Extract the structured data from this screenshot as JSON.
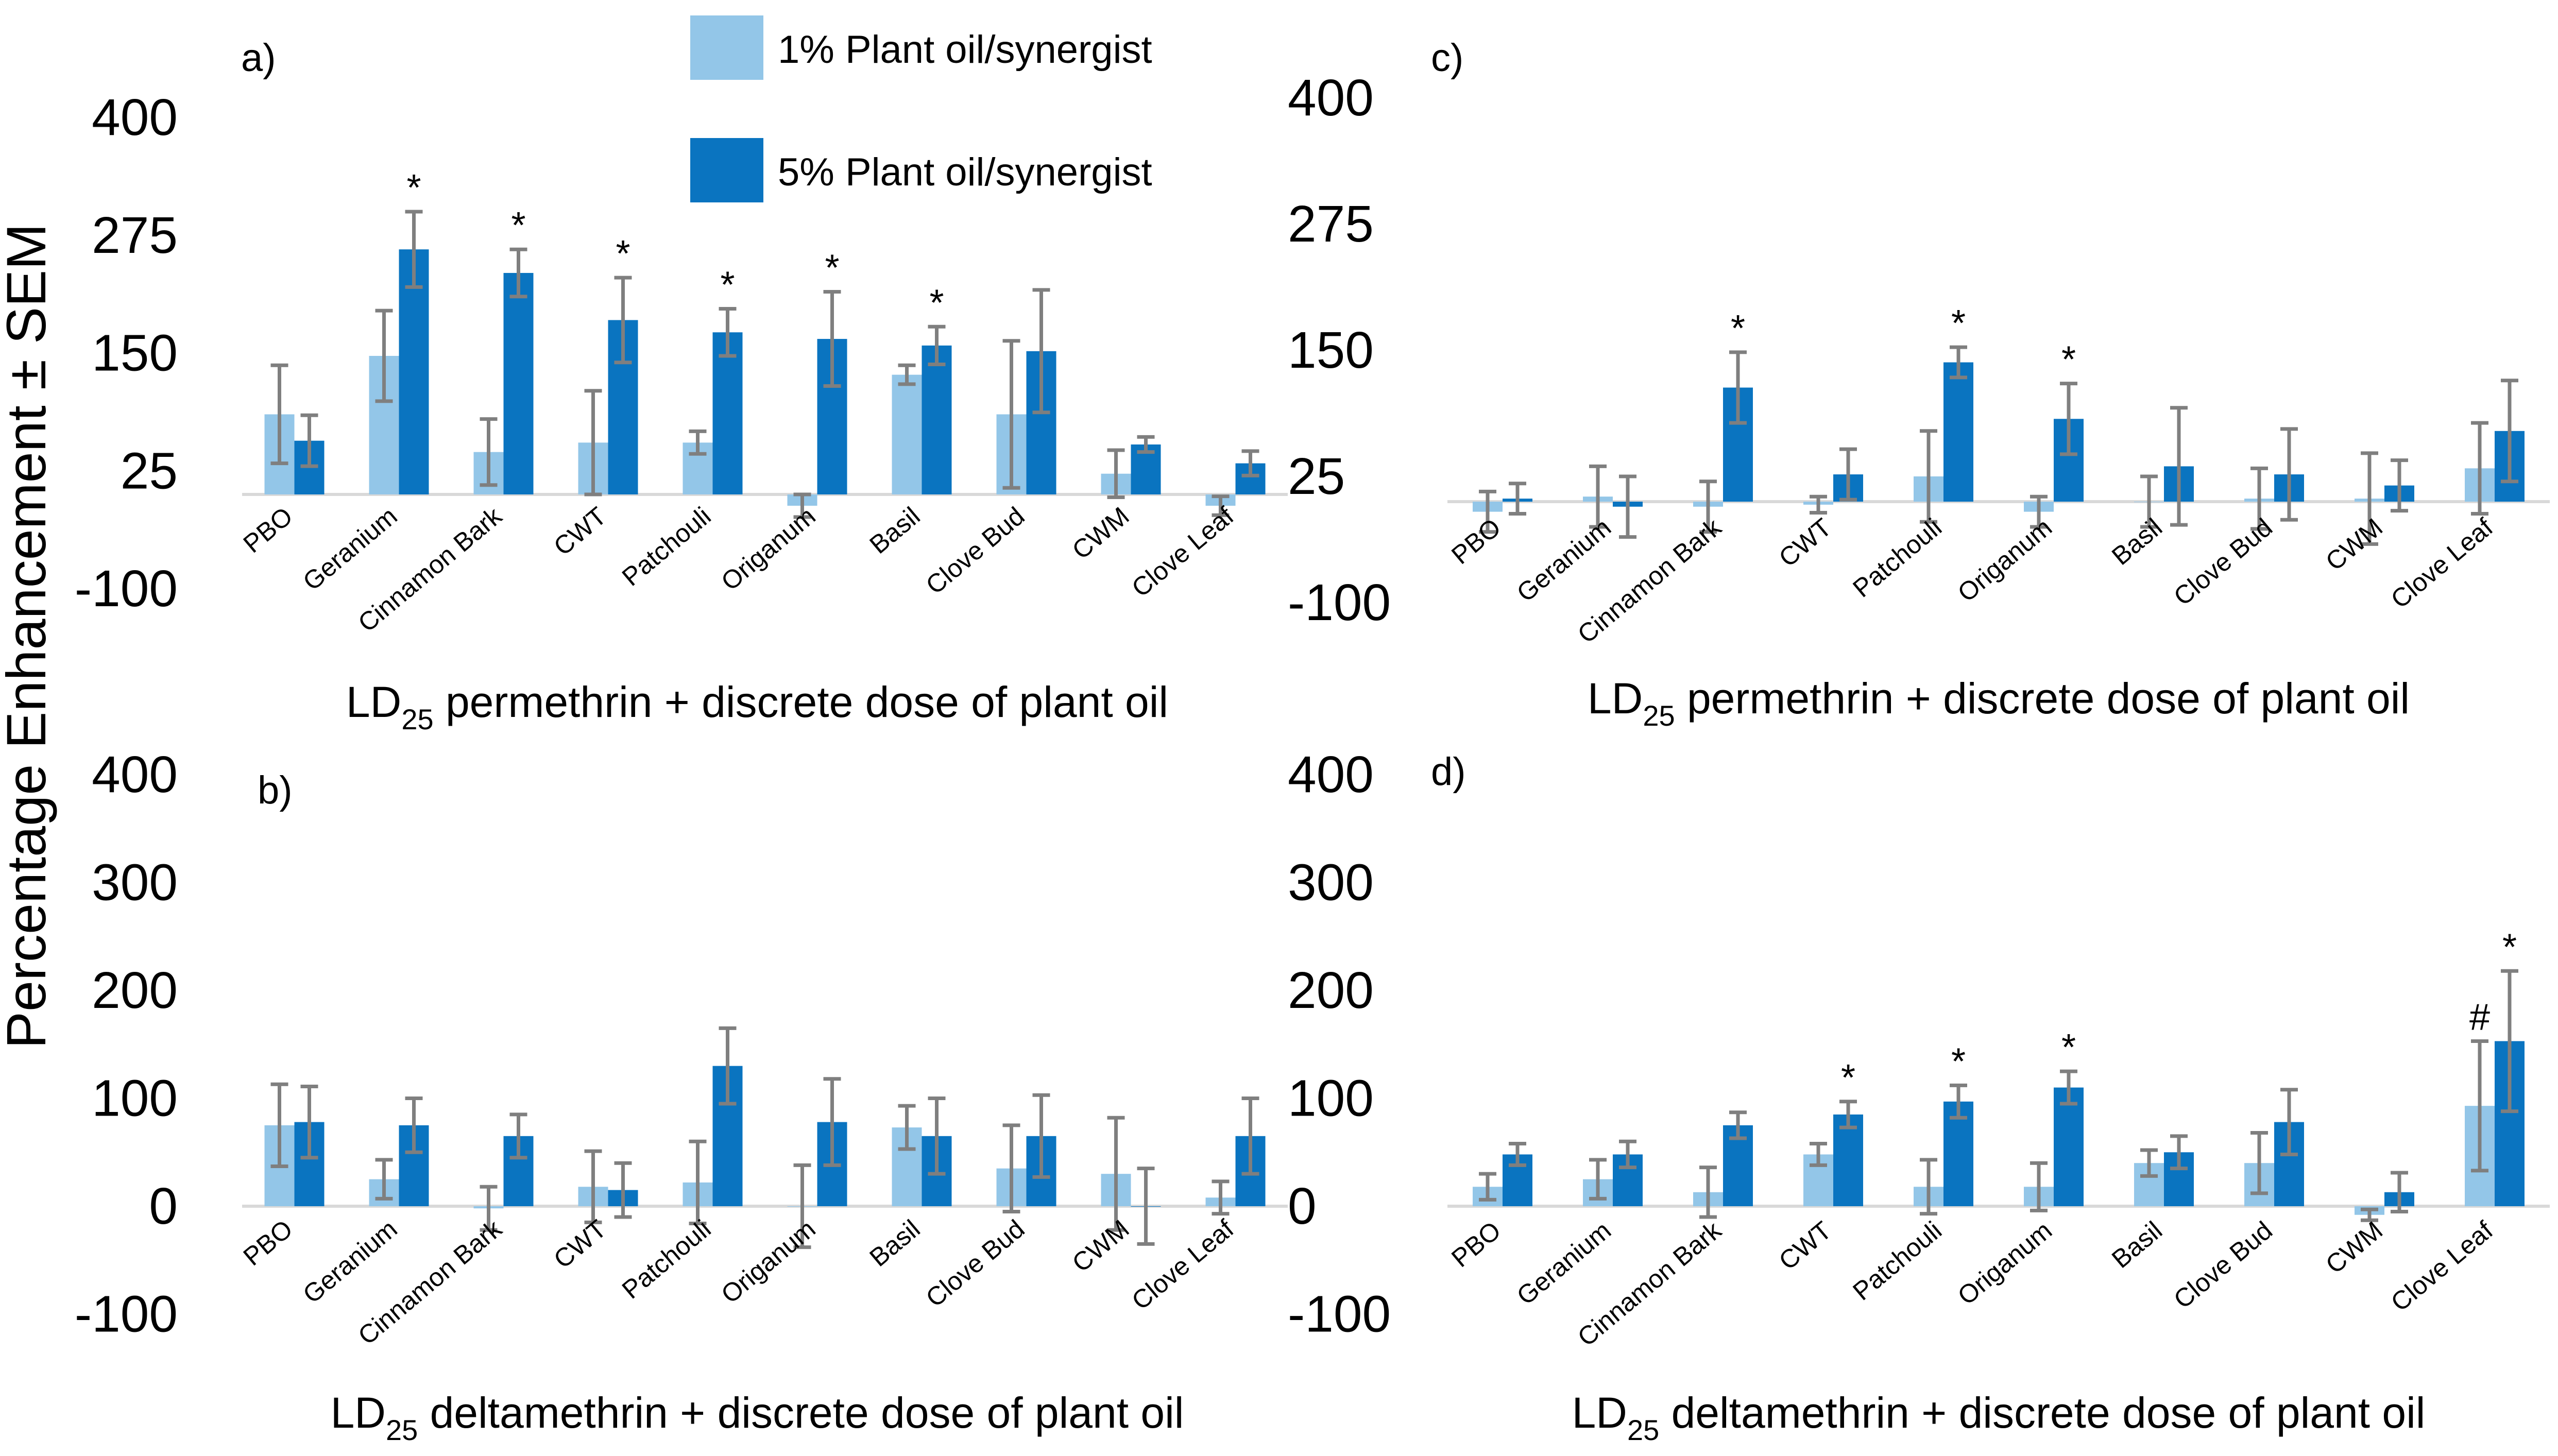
{
  "figure": {
    "y_axis_label": "Percentage Enhancement ± SEM",
    "legend": [
      {
        "label": "1% Plant oil/synergist",
        "color": "#93c6e8"
      },
      {
        "label": "5% Plant oil/synergist",
        "color": "#0a74c0"
      }
    ]
  },
  "colors": {
    "series_1": "#93c6e8",
    "series_5": "#0a74c0",
    "error_bar": "#7f7f7f",
    "baseline": "#d9d9d9"
  },
  "chart_data": [
    {
      "panel": "a)",
      "type": "bar",
      "xlabel_prefix": "LD",
      "xlabel_sub": "25",
      "xlabel_rest": " permethrin + discrete dose of plant oil",
      "ylim": [
        -100,
        400
      ],
      "yticks": [
        400,
        275,
        150,
        25,
        -100
      ],
      "categories": [
        "PBO",
        "Geranium",
        "Cinnamon Bark",
        "CWT",
        "Patchouli",
        "Origanum",
        "Basil",
        "Clove Bud",
        "CWM",
        "Clove Leaf"
      ],
      "series": [
        {
          "name": "1% Plant oil/synergist",
          "values": [
            85,
            147,
            45,
            55,
            55,
            -12,
            127,
            85,
            22,
            -12
          ],
          "errors": [
            52,
            48,
            35,
            55,
            12,
            12,
            10,
            78,
            25,
            10
          ]
        },
        {
          "name": "5% Plant oil/synergist",
          "values": [
            57,
            260,
            235,
            185,
            172,
            165,
            158,
            152,
            53,
            33
          ],
          "errors": [
            27,
            40,
            25,
            45,
            25,
            50,
            20,
            65,
            8,
            13
          ]
        }
      ],
      "annotations": [
        "",
        "*",
        "*",
        "*",
        "*",
        "*",
        "*",
        "",
        "",
        ""
      ]
    },
    {
      "panel": "b)",
      "type": "bar",
      "xlabel_prefix": "LD",
      "xlabel_sub": "25",
      "xlabel_rest": " deltamethrin + discrete dose of plant oil",
      "ylim": [
        -100,
        400
      ],
      "yticks": [
        400,
        300,
        200,
        100,
        0,
        -100
      ],
      "categories": [
        "PBO",
        "Geranium",
        "Cinnamon Bark",
        "CWT",
        "Patchouli",
        "Origanum",
        "Basil",
        "Clove Bud",
        "CWM",
        "Clove Leaf"
      ],
      "series": [
        {
          "name": "1% Plant oil/synergist",
          "values": [
            75,
            25,
            -2,
            18,
            22,
            0,
            73,
            35,
            30,
            8
          ],
          "errors": [
            38,
            18,
            20,
            33,
            38,
            38,
            20,
            40,
            52,
            15
          ]
        },
        {
          "name": "5% Plant oil/synergist",
          "values": [
            78,
            75,
            65,
            15,
            130,
            78,
            65,
            65,
            0,
            65
          ],
          "errors": [
            33,
            25,
            20,
            25,
            35,
            40,
            35,
            38,
            35,
            35
          ]
        }
      ],
      "annotations": [
        "",
        "",
        "",
        "",
        "",
        "",
        "",
        "",
        "",
        ""
      ]
    },
    {
      "panel": "c)",
      "type": "bar",
      "xlabel_prefix": "LD",
      "xlabel_sub": "25",
      "xlabel_rest": " permethrin + discrete dose of plant oil",
      "ylim": [
        -100,
        400
      ],
      "yticks": [
        400,
        275,
        150,
        25,
        -100
      ],
      "categories": [
        "PBO",
        "Geranium",
        "Cinnamon Bark",
        "CWT",
        "Patchouli",
        "Origanum",
        "Basil",
        "Clove Bud",
        "CWM",
        "Clove Leaf"
      ],
      "series": [
        {
          "name": "1% Plant oil/synergist",
          "values": [
            -10,
            5,
            -5,
            -3,
            25,
            -10,
            0,
            3,
            3,
            33
          ],
          "errors": [
            20,
            30,
            25,
            8,
            45,
            15,
            25,
            30,
            45,
            45
          ]
        },
        {
          "name": "5% Plant oil/synergist",
          "values": [
            3,
            -5,
            113,
            27,
            138,
            82,
            35,
            27,
            16,
            70
          ],
          "errors": [
            15,
            30,
            35,
            25,
            15,
            35,
            58,
            45,
            25,
            50
          ]
        }
      ],
      "annotations": [
        "",
        "",
        "*",
        "",
        "*",
        "*",
        "",
        "",
        "",
        ""
      ]
    },
    {
      "panel": "d)",
      "type": "bar",
      "xlabel_prefix": "LD",
      "xlabel_sub": "25",
      "xlabel_rest": " deltamethrin + discrete dose of plant oil",
      "ylim": [
        -100,
        400
      ],
      "yticks": [
        400,
        300,
        200,
        100,
        0,
        -100
      ],
      "categories": [
        "PBO",
        "Geranium",
        "Cinnamon Bark",
        "CWT",
        "Patchouli",
        "Origanum",
        "Basil",
        "Clove Bud",
        "CWM",
        "Clove Leaf"
      ],
      "series": [
        {
          "name": "1% Plant oil/synergist",
          "values": [
            18,
            25,
            13,
            48,
            18,
            18,
            40,
            40,
            -8,
            93
          ],
          "errors": [
            12,
            18,
            23,
            10,
            25,
            22,
            12,
            28,
            5,
            60
          ]
        },
        {
          "name": "5% Plant oil/synergist",
          "values": [
            48,
            48,
            75,
            85,
            97,
            110,
            50,
            78,
            13,
            153
          ],
          "errors": [
            10,
            12,
            12,
            12,
            15,
            15,
            15,
            30,
            18,
            65
          ]
        }
      ],
      "annotations_1": [
        "",
        "",
        "",
        "",
        "",
        "",
        "",
        "",
        "",
        "#"
      ],
      "annotations": [
        "",
        "",
        "",
        "*",
        "*",
        "*",
        "",
        "",
        "",
        "*"
      ]
    }
  ]
}
